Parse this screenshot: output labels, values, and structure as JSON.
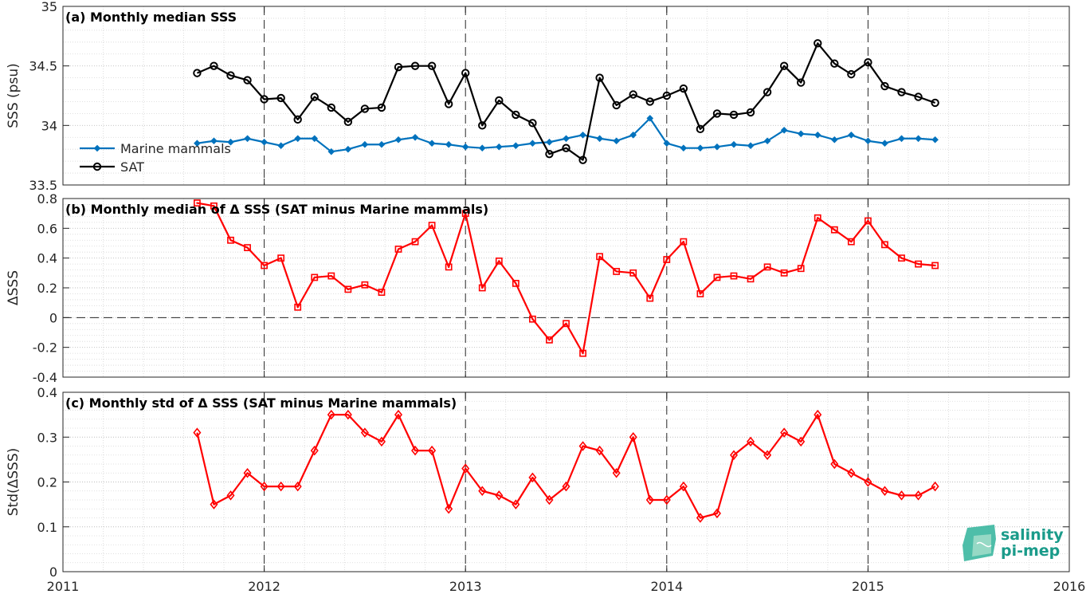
{
  "chart_data": [
    {
      "type": "line",
      "title": "(a) Monthly median SSS",
      "ylabel": "SSS (psu)",
      "ylim": [
        33.5,
        35
      ],
      "yticks": [
        "33.5",
        "34",
        "34.5",
        "35"
      ],
      "xlim": [
        2011,
        2016
      ],
      "xticks": [
        "2011",
        "2012",
        "2013",
        "2014",
        "2015",
        "2016"
      ],
      "x_start": "2011-09",
      "series": [
        {
          "name": "Marine mammals",
          "color": "#0072bd",
          "marker": "filled-dot",
          "values": [
            33.85,
            33.87,
            33.86,
            33.89,
            33.86,
            33.83,
            33.89,
            33.89,
            33.78,
            33.8,
            33.84,
            33.84,
            33.88,
            33.9,
            33.85,
            33.84,
            33.82,
            33.81,
            33.82,
            33.83,
            33.85,
            33.86,
            33.89,
            33.92,
            33.89,
            33.87,
            33.92,
            34.06,
            33.85,
            33.81,
            33.81,
            33.82,
            33.84,
            33.83,
            33.87,
            33.96,
            33.93,
            33.92,
            33.88,
            33.92,
            33.87,
            33.85,
            33.89,
            33.89,
            33.88
          ]
        },
        {
          "name": "SAT",
          "color": "#000000",
          "marker": "open-circle",
          "values": [
            34.44,
            34.5,
            34.42,
            34.38,
            34.22,
            34.23,
            34.05,
            34.24,
            34.15,
            34.03,
            34.14,
            34.15,
            34.49,
            34.5,
            34.5,
            34.18,
            34.44,
            34.0,
            34.21,
            34.09,
            34.02,
            33.76,
            33.81,
            33.71,
            34.4,
            34.17,
            34.26,
            34.2,
            34.25,
            34.31,
            33.97,
            34.1,
            34.09,
            34.11,
            34.28,
            34.5,
            34.36,
            34.69,
            34.52,
            34.43,
            34.53,
            34.33,
            34.28,
            34.24,
            34.19
          ]
        }
      ],
      "legend": "lower-left"
    },
    {
      "type": "line",
      "title": "(b) Monthly median of Δ SSS (SAT minus Marine mammals)",
      "ylabel": "ΔSSS",
      "ylim": [
        -0.4,
        0.8
      ],
      "yticks": [
        "-0.4",
        "-0.2",
        "0",
        "0.2",
        "0.4",
        "0.6",
        "0.8"
      ],
      "xlim": [
        2011,
        2016
      ],
      "reference_line": 0,
      "x_start": "2011-09",
      "series": [
        {
          "color": "#ff0000",
          "marker": "open-square",
          "values": [
            0.77,
            0.75,
            0.52,
            0.47,
            0.35,
            0.4,
            0.07,
            0.27,
            0.28,
            0.19,
            0.22,
            0.17,
            0.46,
            0.51,
            0.62,
            0.34,
            0.7,
            0.2,
            0.38,
            0.23,
            -0.01,
            -0.15,
            -0.04,
            -0.24,
            0.41,
            0.31,
            0.3,
            0.13,
            0.39,
            0.51,
            0.16,
            0.27,
            0.28,
            0.26,
            0.34,
            0.3,
            0.33,
            0.67,
            0.59,
            0.51,
            0.65,
            0.49,
            0.4,
            0.36,
            0.35
          ]
        }
      ]
    },
    {
      "type": "line",
      "title": "(c) Monthly std of Δ SSS (SAT minus Marine mammals)",
      "ylabel": "Std(ΔSSS)",
      "ylim": [
        0,
        0.4
      ],
      "yticks": [
        "0",
        "0.1",
        "0.2",
        "0.3",
        "0.4"
      ],
      "xlim": [
        2011,
        2016
      ],
      "x_start": "2011-09",
      "series": [
        {
          "color": "#ff0000",
          "marker": "open-diamond",
          "values": [
            0.31,
            0.15,
            0.17,
            0.22,
            0.19,
            0.19,
            0.19,
            0.27,
            0.35,
            0.35,
            0.31,
            0.29,
            0.35,
            0.27,
            0.27,
            0.14,
            0.23,
            0.18,
            0.17,
            0.15,
            0.21,
            0.16,
            0.19,
            0.28,
            0.27,
            0.22,
            0.3,
            0.16,
            0.16,
            0.19,
            0.12,
            0.13,
            0.26,
            0.29,
            0.26,
            0.31,
            0.29,
            0.35,
            0.24,
            0.22,
            0.2,
            0.18,
            0.17,
            0.17,
            0.19
          ]
        }
      ]
    }
  ],
  "logo": {
    "line1": "salinity",
    "line2": "pi-mep",
    "color": "#1a9b8a"
  }
}
